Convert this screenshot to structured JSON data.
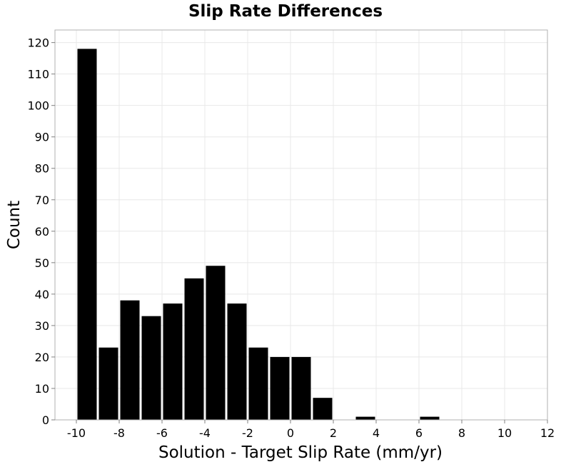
{
  "chart_data": {
    "type": "bar",
    "title": "Slip Rate Differences",
    "xlabel": "Solution - Target Slip Rate (mm/yr)",
    "ylabel": "Count",
    "bin_width": 1,
    "bins": [
      {
        "x": -10,
        "value": 118
      },
      {
        "x": -9,
        "value": 23
      },
      {
        "x": -8,
        "value": 38
      },
      {
        "x": -7,
        "value": 33
      },
      {
        "x": -6,
        "value": 37
      },
      {
        "x": -5,
        "value": 45
      },
      {
        "x": -4,
        "value": 49
      },
      {
        "x": -3,
        "value": 37
      },
      {
        "x": -2,
        "value": 23
      },
      {
        "x": -1,
        "value": 20
      },
      {
        "x": 0,
        "value": 20
      },
      {
        "x": 1,
        "value": 7
      },
      {
        "x": 3,
        "value": 1
      },
      {
        "x": 6,
        "value": 1
      }
    ],
    "xlim": [
      -11,
      12
    ],
    "ylim": [
      0,
      124
    ],
    "x_ticks": [
      -10,
      -8,
      -6,
      -4,
      -2,
      0,
      2,
      4,
      6,
      8,
      10,
      12
    ],
    "y_ticks": [
      0,
      10,
      20,
      30,
      40,
      50,
      60,
      70,
      80,
      90,
      100,
      110,
      120
    ],
    "grid": true,
    "bar_color": "#000000",
    "grid_color": "#e8e8e8",
    "border_color": "#b0b0b0"
  }
}
